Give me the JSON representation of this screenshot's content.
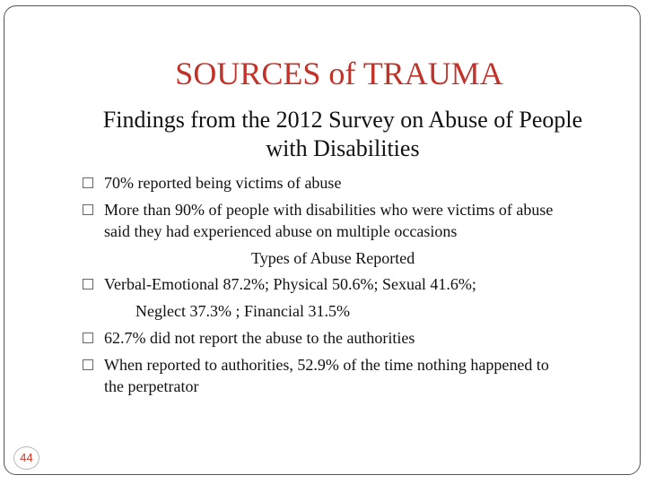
{
  "slide": {
    "title": "SOURCES of TRAUMA",
    "subtitle_line1": "Findings from the 2012 Survey on Abuse of People",
    "subtitle_line2": "with Disabilities",
    "bullets": [
      {
        "line1": "70% reported being victims of abuse"
      },
      {
        "line1": "More than 90% of people with disabilities who were victims of abuse",
        "line2": "said they had experienced abuse on multiple occasions"
      },
      {
        "heading": "Types of Abuse Reported",
        "line1": "Verbal-Emotional 87.2%; Physical 50.6%; Sexual 41.6%;",
        "line2": "Neglect 37.3% ; Financial 31.5%"
      },
      {
        "line1": "62.7%  did not report the abuse to the authorities"
      },
      {
        "line1": "When reported to authorities, 52.9% of the time nothing happened to",
        "line2": "the perpetrator"
      }
    ],
    "page_number": "44"
  },
  "colors": {
    "title": "#c0332b",
    "text": "#111111",
    "page_number": "#d2382a",
    "frame": "#555555"
  }
}
